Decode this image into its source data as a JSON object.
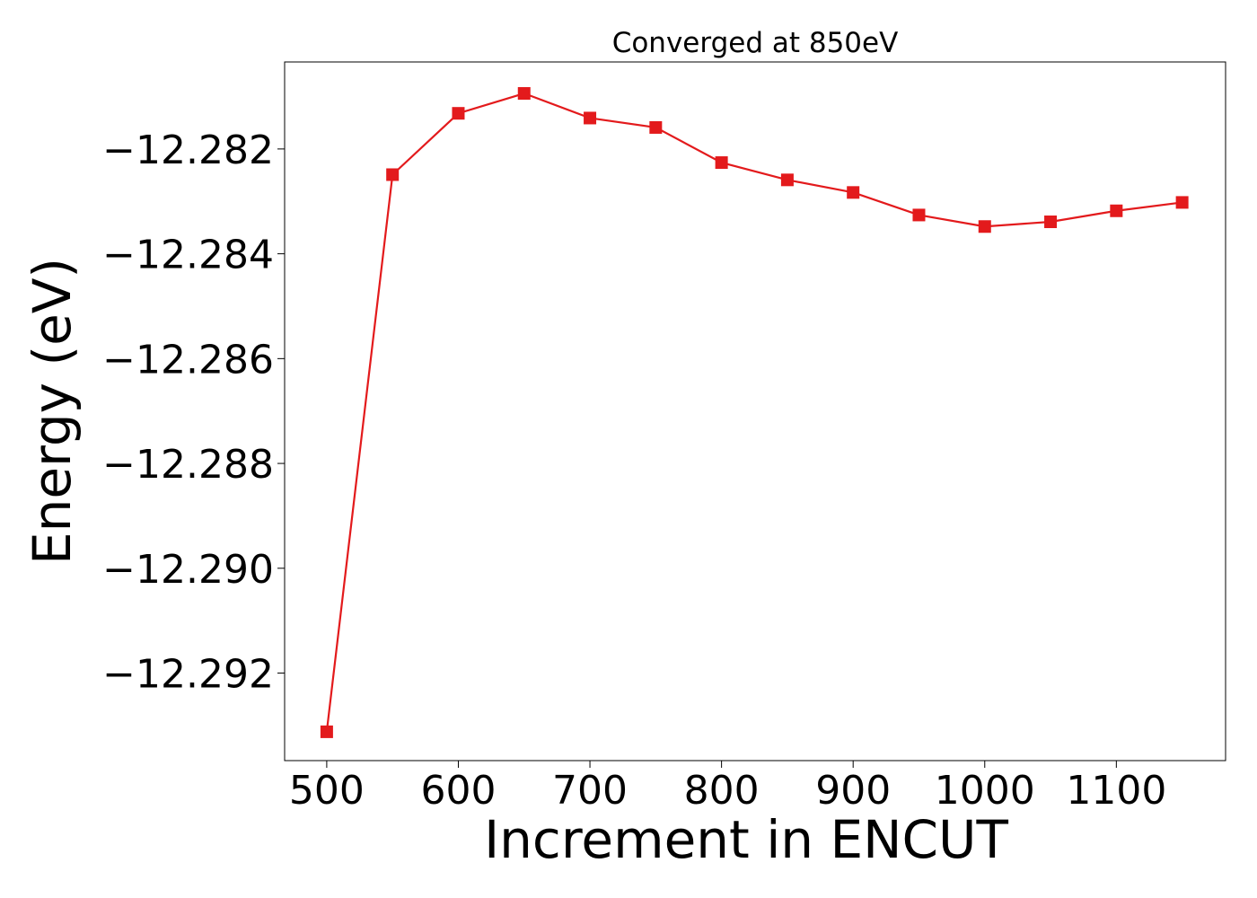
{
  "chart_data": {
    "type": "line",
    "title": "Converged at 850eV",
    "xlabel": "Increment in ENCUT",
    "ylabel": "Energy (eV)",
    "xlim": [
      468,
      1183
    ],
    "ylim": [
      -12.29367,
      -12.28034
    ],
    "xticks": [
      500,
      600,
      700,
      800,
      900,
      1000,
      1100
    ],
    "xtick_labels": [
      "500",
      "600",
      "700",
      "800",
      "900",
      "1000",
      "1100"
    ],
    "yticks": [
      -12.282,
      -12.284,
      -12.286,
      -12.288,
      -12.29,
      -12.292
    ],
    "ytick_labels": [
      "−12.282",
      "−12.284",
      "−12.286",
      "−12.288",
      "−12.290",
      "−12.292"
    ],
    "grid": false,
    "series": [
      {
        "color": "#e31a1c",
        "marker": "square",
        "x": [
          500,
          550,
          600,
          650,
          700,
          750,
          800,
          850,
          900,
          950,
          1000,
          1050,
          1100,
          1150
        ],
        "y": [
          -12.29312,
          -12.28249,
          -12.28132,
          -12.28094,
          -12.28141,
          -12.28159,
          -12.28226,
          -12.28259,
          -12.28283,
          -12.28326,
          -12.28348,
          -12.28339,
          -12.28318,
          -12.28302
        ]
      }
    ]
  }
}
